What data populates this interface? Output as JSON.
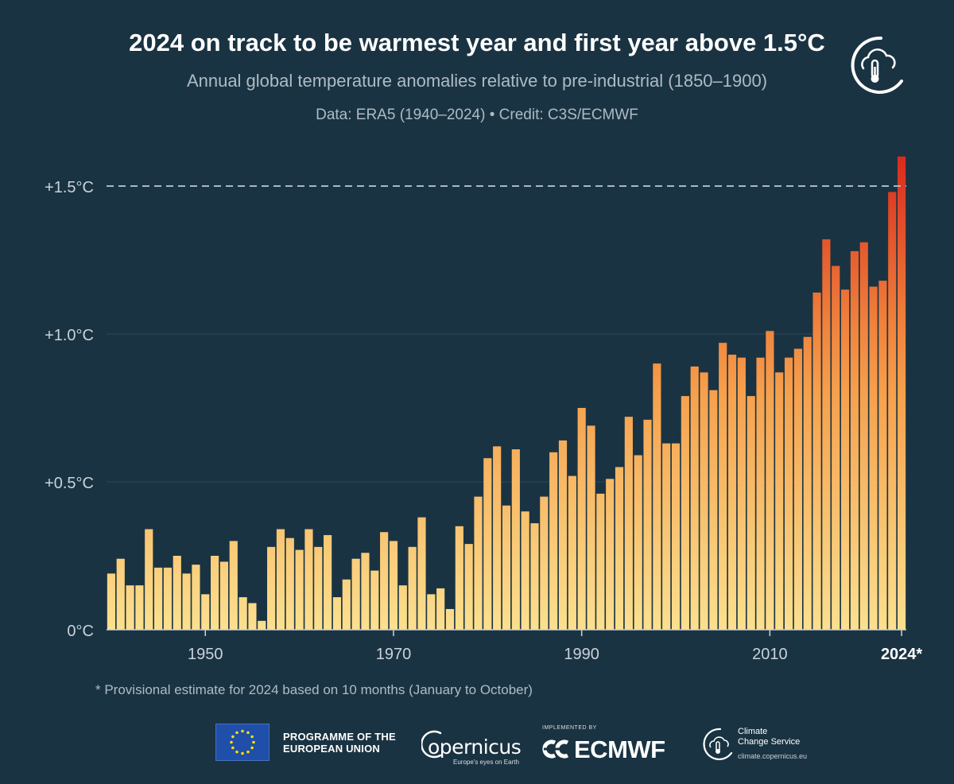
{
  "header": {
    "title": "2024 on track to be warmest year and first year above 1.5°C",
    "subtitle": "Annual global temperature anomalies relative to pre-industrial (1850–1900)",
    "credit": "Data: ERA5 (1940–2024) • Credit: C3S/ECMWF"
  },
  "icons": {
    "header_logo": "climate-thermometer-cloud-icon",
    "eu_flag": "eu-flag-icon",
    "ecmwf": "ecmwf-logo-icon",
    "ccs": "climate-change-service-icon"
  },
  "colors": {
    "background": "#1a3342",
    "bar_low": "#fbe08f",
    "bar_mid": "#f59a45",
    "bar_high": "#d92a1e",
    "reference_line": "#a9b7c0"
  },
  "chart_data": {
    "type": "bar",
    "xlim": [
      1940,
      2024
    ],
    "ylim": [
      0,
      1.6
    ],
    "y_ticks": [
      {
        "value": 0,
        "label": "0°C"
      },
      {
        "value": 0.5,
        "label": "+0.5°C"
      },
      {
        "value": 1.0,
        "label": "+1.0°C"
      },
      {
        "value": 1.5,
        "label": "+1.5°C"
      }
    ],
    "x_ticks": [
      {
        "value": 1950,
        "label": "1950",
        "bold": false
      },
      {
        "value": 1970,
        "label": "1970",
        "bold": false
      },
      {
        "value": 1990,
        "label": "1990",
        "bold": false
      },
      {
        "value": 2010,
        "label": "2010",
        "bold": false
      },
      {
        "value": 2024,
        "label": "2024*",
        "bold": true
      }
    ],
    "reference_line": {
      "value": 1.5,
      "style": "dashed"
    },
    "grid": true,
    "bar_color": "gradient yellow to red by value",
    "x": [
      1940,
      1941,
      1942,
      1943,
      1944,
      1945,
      1946,
      1947,
      1948,
      1949,
      1950,
      1951,
      1952,
      1953,
      1954,
      1955,
      1956,
      1957,
      1958,
      1959,
      1960,
      1961,
      1962,
      1963,
      1964,
      1965,
      1966,
      1967,
      1968,
      1969,
      1970,
      1971,
      1972,
      1973,
      1974,
      1975,
      1976,
      1977,
      1978,
      1979,
      1980,
      1981,
      1982,
      1983,
      1984,
      1985,
      1986,
      1987,
      1988,
      1989,
      1990,
      1991,
      1992,
      1993,
      1994,
      1995,
      1996,
      1997,
      1998,
      1999,
      2000,
      2001,
      2002,
      2003,
      2004,
      2005,
      2006,
      2007,
      2008,
      2009,
      2010,
      2011,
      2012,
      2013,
      2014,
      2015,
      2016,
      2017,
      2018,
      2019,
      2020,
      2021,
      2022,
      2023,
      2024
    ],
    "values": [
      0.19,
      0.24,
      0.15,
      0.15,
      0.34,
      0.21,
      0.21,
      0.25,
      0.19,
      0.22,
      0.12,
      0.25,
      0.23,
      0.3,
      0.11,
      0.09,
      0.03,
      0.28,
      0.34,
      0.31,
      0.27,
      0.34,
      0.28,
      0.32,
      0.11,
      0.17,
      0.24,
      0.26,
      0.2,
      0.33,
      0.3,
      0.15,
      0.28,
      0.38,
      0.12,
      0.14,
      0.07,
      0.35,
      0.29,
      0.45,
      0.58,
      0.62,
      0.42,
      0.61,
      0.4,
      0.36,
      0.45,
      0.6,
      0.64,
      0.52,
      0.75,
      0.69,
      0.46,
      0.51,
      0.55,
      0.72,
      0.59,
      0.71,
      0.9,
      0.63,
      0.63,
      0.79,
      0.89,
      0.87,
      0.81,
      0.97,
      0.93,
      0.92,
      0.79,
      0.92,
      1.01,
      0.87,
      0.92,
      0.95,
      0.99,
      1.14,
      1.32,
      1.23,
      1.15,
      1.28,
      1.31,
      1.16,
      1.18,
      1.48,
      1.6
    ]
  },
  "footnote": "* Provisional estimate for 2024 based on 10 months (January to October)",
  "footer": {
    "eu_line1": "PROGRAMME OF THE",
    "eu_line2": "EUROPEAN UNION",
    "copernicus_name": "opernicus",
    "copernicus_tagline": "Europe's eyes on Earth",
    "ecmwf_implemented": "IMPLEMENTED BY",
    "ecmwf_name": "ECMWF",
    "ccs_line1": "Climate",
    "ccs_line2": "Change Service",
    "ccs_url": "climate.copernicus.eu"
  }
}
